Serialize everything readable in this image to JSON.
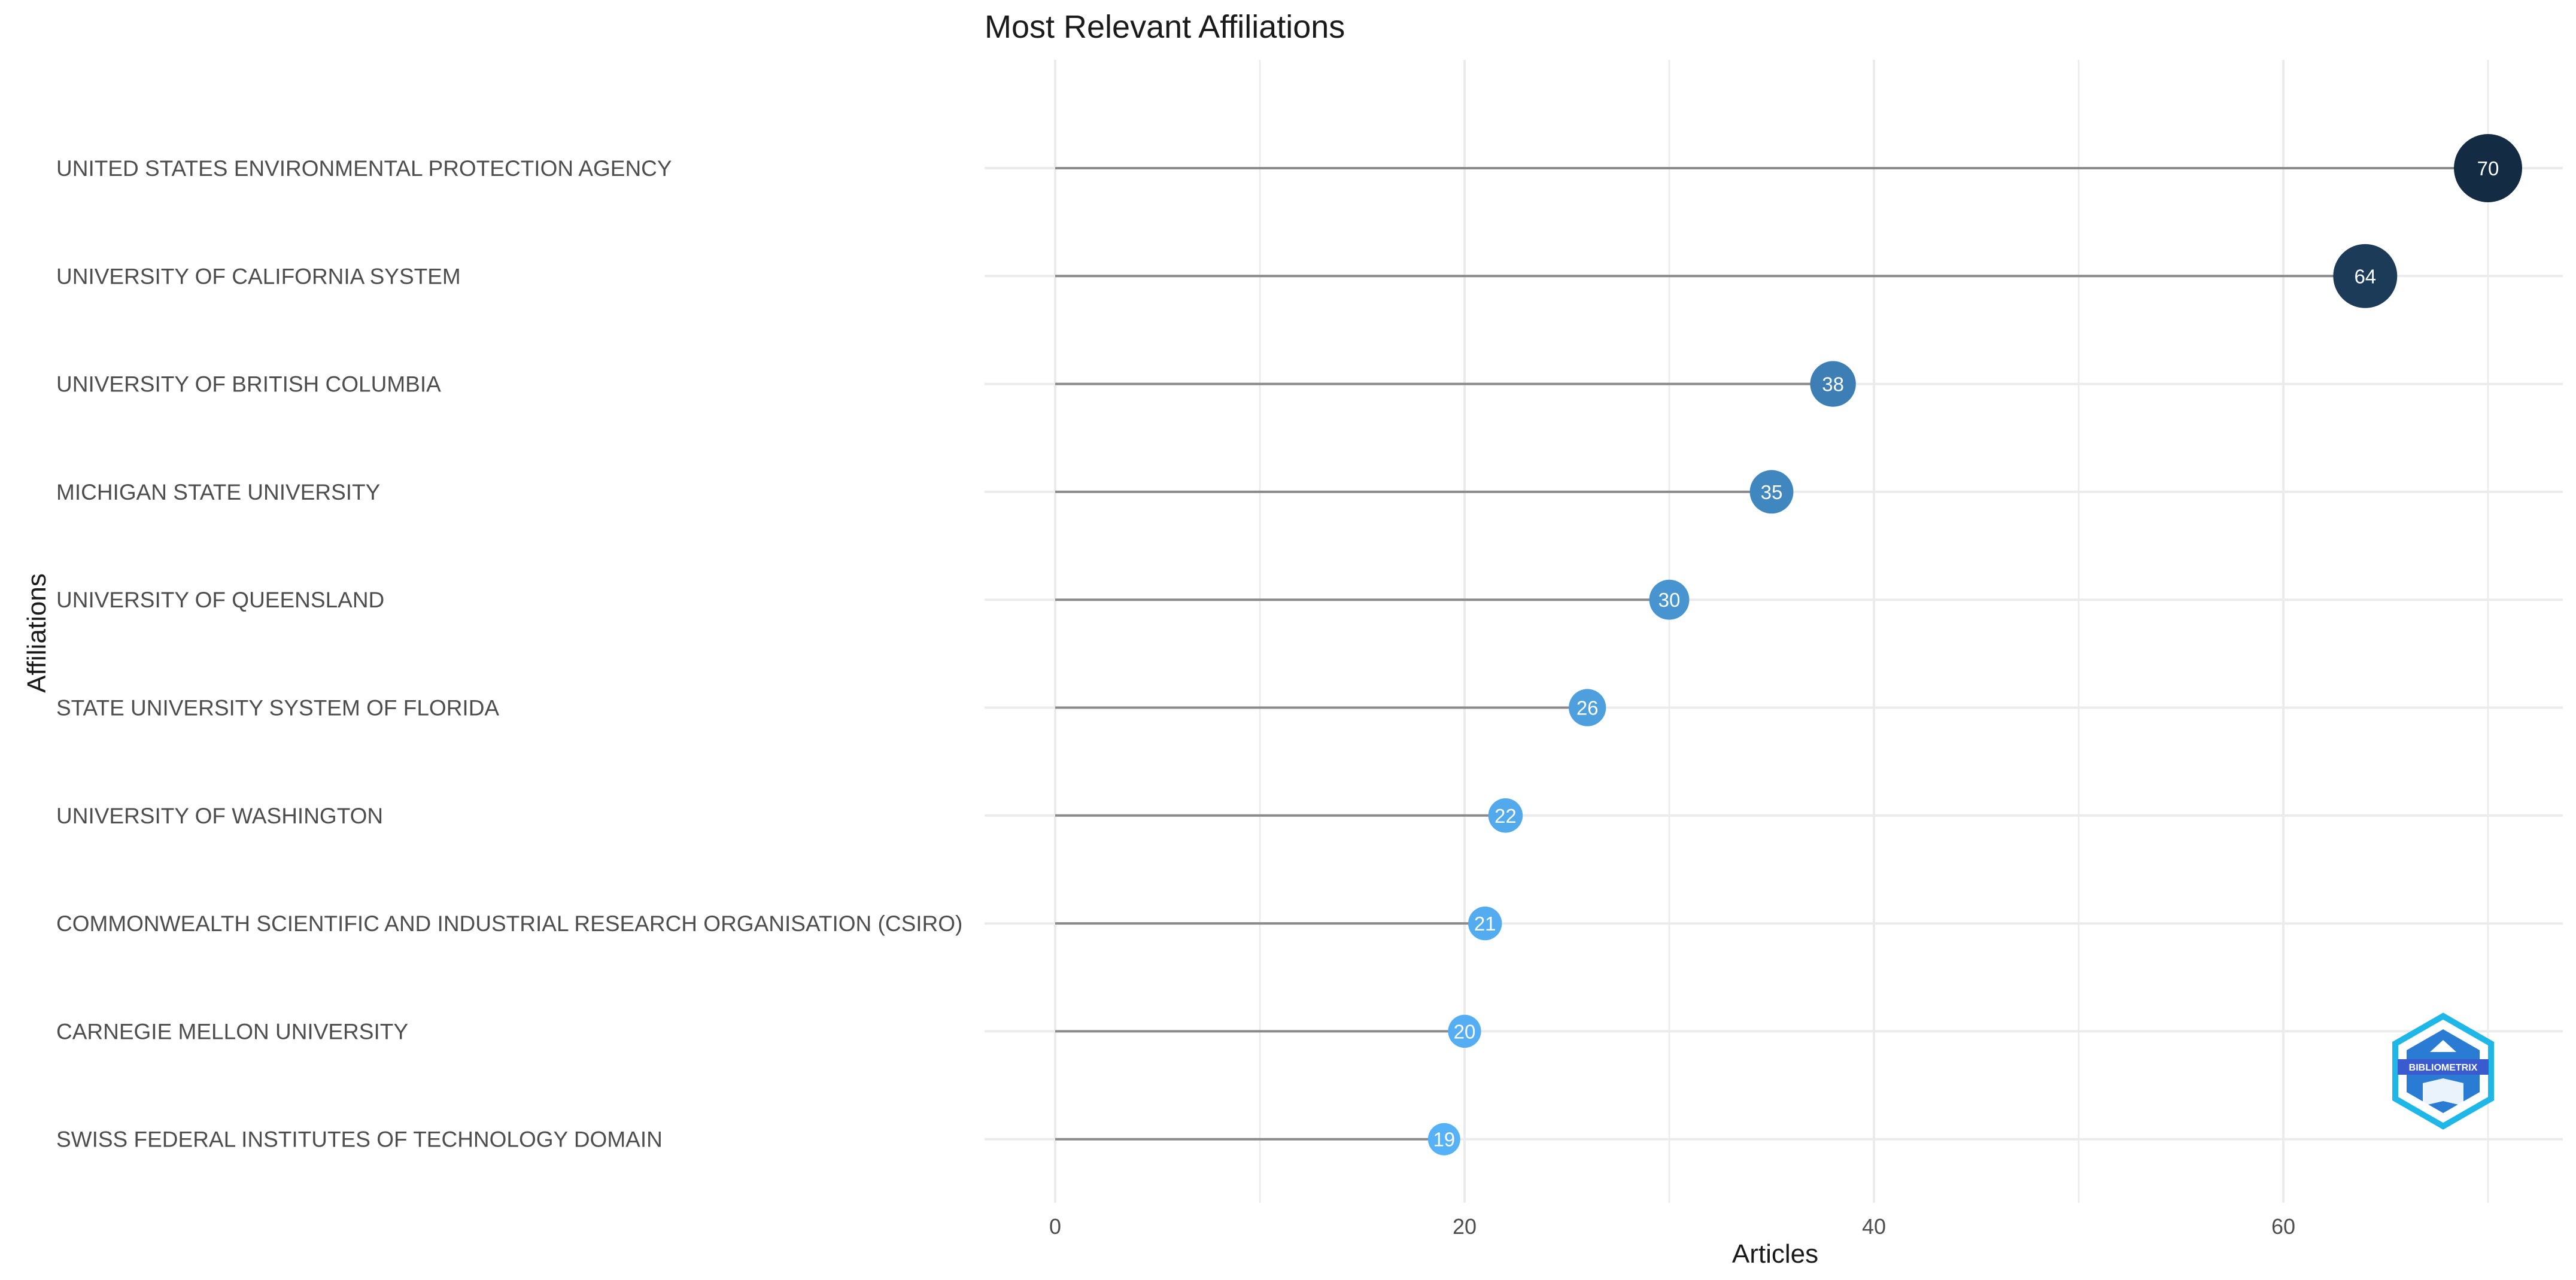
{
  "chart_data": {
    "type": "lollipop",
    "title": "Most Relevant Affiliations",
    "xlabel": "Articles",
    "ylabel": "Affiliations",
    "xlim": [
      0,
      73
    ],
    "xticks": [
      0,
      20,
      40,
      60
    ],
    "grid": true,
    "categories": [
      "UNITED STATES ENVIRONMENTAL PROTECTION AGENCY",
      "UNIVERSITY OF CALIFORNIA SYSTEM",
      "UNIVERSITY OF BRITISH COLUMBIA",
      "MICHIGAN STATE UNIVERSITY",
      "UNIVERSITY OF QUEENSLAND",
      "STATE UNIVERSITY SYSTEM OF FLORIDA",
      "UNIVERSITY OF WASHINGTON",
      "COMMONWEALTH SCIENTIFIC AND INDUSTRIAL RESEARCH ORGANISATION (CSIRO)",
      "CARNEGIE MELLON UNIVERSITY",
      "SWISS FEDERAL INSTITUTES OF TECHNOLOGY DOMAIN"
    ],
    "values": [
      70,
      64,
      38,
      35,
      30,
      26,
      22,
      21,
      20,
      19
    ],
    "colors": {
      "low": "#56B1F7",
      "high": "#132B43",
      "stem": "#8a8a8a",
      "grid": "#ebebeb"
    }
  },
  "logo": {
    "text": "BIBLIOMETRIX",
    "colors": [
      "#2a7bd4",
      "#1fb6e8",
      "#3a5bd0"
    ]
  }
}
